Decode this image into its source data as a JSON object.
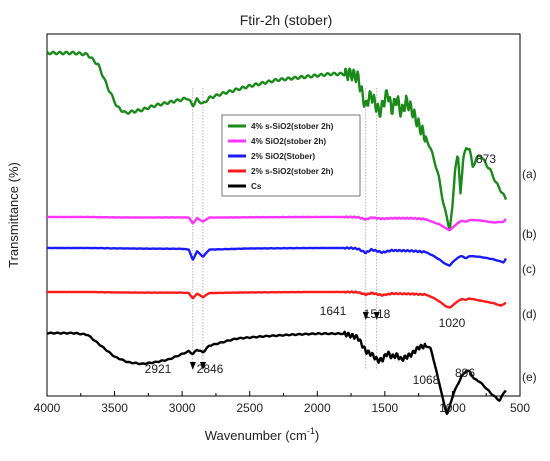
{
  "chart_data": {
    "type": "line",
    "title": "Ftir-2h (stober)",
    "xlabel": "Wavenumber (cm",
    "xlabel_sup": "-1",
    "xlabel_close": ")",
    "ylabel": "Transmittance (%)",
    "x_range": [
      4000,
      500
    ],
    "x_reversed": true,
    "x_ticks": [
      4000,
      3500,
      3000,
      2500,
      2000,
      1500,
      1000,
      500
    ],
    "y_ticks_labeled": false,
    "grid": false,
    "legend_placement": "inside-center",
    "legend": [
      {
        "name": "4% s-SiO2(stober 2h)",
        "color": "#1a8a1a"
      },
      {
        "name": "4% SiO2(stober 2h)",
        "color": "#ff33ff"
      },
      {
        "name": "2% SiO2(Stober)",
        "color": "#1a1aff"
      },
      {
        "name": "2% s-SiO2(stober 2h)",
        "color": "#ff1a1a"
      },
      {
        "name": "Cs",
        "color": "#000000"
      }
    ],
    "series": [
      {
        "id": "a",
        "label": "(a)",
        "color": "#1a8a1a",
        "points": [
          [
            4000,
            0.98
          ],
          [
            3800,
            0.98
          ],
          [
            3700,
            0.97
          ],
          [
            3620,
            0.9
          ],
          [
            3550,
            0.75
          ],
          [
            3480,
            0.62
          ],
          [
            3420,
            0.58
          ],
          [
            3300,
            0.6
          ],
          [
            3200,
            0.63
          ],
          [
            3100,
            0.65
          ],
          [
            3000,
            0.67
          ],
          [
            2960,
            0.68
          ],
          [
            2921,
            0.63
          ],
          [
            2890,
            0.67
          ],
          [
            2846,
            0.64
          ],
          [
            2800,
            0.68
          ],
          [
            2700,
            0.71
          ],
          [
            2500,
            0.76
          ],
          [
            2300,
            0.8
          ],
          [
            2100,
            0.82
          ],
          [
            1900,
            0.84
          ],
          [
            1750,
            0.84
          ],
          [
            1700,
            0.82
          ],
          [
            1660,
            0.68
          ],
          [
            1641,
            0.62
          ],
          [
            1620,
            0.68
          ],
          [
            1600,
            0.7
          ],
          [
            1560,
            0.62
          ],
          [
            1540,
            0.58
          ],
          [
            1518,
            0.63
          ],
          [
            1480,
            0.72
          ],
          [
            1450,
            0.6
          ],
          [
            1410,
            0.68
          ],
          [
            1380,
            0.58
          ],
          [
            1340,
            0.66
          ],
          [
            1300,
            0.6
          ],
          [
            1250,
            0.5
          ],
          [
            1200,
            0.42
          ],
          [
            1160,
            0.34
          ],
          [
            1130,
            0.25
          ],
          [
            1100,
            0.15
          ],
          [
            1068,
            -0.02
          ],
          [
            1040,
            -0.12
          ],
          [
            1020,
            -0.2
          ],
          [
            1000,
            -0.05
          ],
          [
            980,
            0.22
          ],
          [
            960,
            0.3
          ],
          [
            940,
            0.05
          ],
          [
            920,
            0.28
          ],
          [
            896,
            0.35
          ],
          [
            873,
            0.34
          ],
          [
            850,
            0.22
          ],
          [
            820,
            0.28
          ],
          [
            790,
            0.3
          ],
          [
            760,
            0.25
          ],
          [
            720,
            0.2
          ],
          [
            680,
            0.12
          ],
          [
            640,
            0.06
          ],
          [
            600,
            0.0
          ]
        ]
      },
      {
        "id": "b",
        "label": "(b)",
        "color": "#ff33ff",
        "points": [
          [
            4000,
            1
          ],
          [
            3700,
            1
          ],
          [
            3500,
            0.97
          ],
          [
            3300,
            0.96
          ],
          [
            3000,
            0.97
          ],
          [
            2950,
            0.95
          ],
          [
            2921,
            0.45
          ],
          [
            2890,
            0.9
          ],
          [
            2846,
            0.62
          ],
          [
            2800,
            0.95
          ],
          [
            2500,
            0.98
          ],
          [
            2000,
            1
          ],
          [
            1750,
            1
          ],
          [
            1700,
            0.98
          ],
          [
            1641,
            0.8
          ],
          [
            1600,
            0.95
          ],
          [
            1518,
            0.85
          ],
          [
            1450,
            0.9
          ],
          [
            1300,
            0.9
          ],
          [
            1200,
            0.82
          ],
          [
            1150,
            0.6
          ],
          [
            1100,
            0.4
          ],
          [
            1068,
            0.2
          ],
          [
            1040,
            0.0
          ],
          [
            1020,
            -0.1
          ],
          [
            1000,
            0.1
          ],
          [
            960,
            0.5
          ],
          [
            930,
            0.7
          ],
          [
            900,
            0.6
          ],
          [
            873,
            0.75
          ],
          [
            800,
            0.72
          ],
          [
            700,
            0.55
          ],
          [
            620,
            0.6
          ],
          [
            600,
            0.9
          ]
        ]
      },
      {
        "id": "c",
        "label": "(c)",
        "color": "#1a1aff",
        "points": [
          [
            4000,
            1
          ],
          [
            3700,
            1
          ],
          [
            3500,
            0.98
          ],
          [
            3300,
            0.96
          ],
          [
            3000,
            0.95
          ],
          [
            2950,
            0.9
          ],
          [
            2921,
            0.25
          ],
          [
            2890,
            0.8
          ],
          [
            2846,
            0.45
          ],
          [
            2800,
            0.9
          ],
          [
            2500,
            0.97
          ],
          [
            2000,
            1
          ],
          [
            1750,
            1
          ],
          [
            1700,
            0.95
          ],
          [
            1641,
            0.7
          ],
          [
            1600,
            0.9
          ],
          [
            1518,
            0.72
          ],
          [
            1450,
            0.85
          ],
          [
            1300,
            0.82
          ],
          [
            1200,
            0.75
          ],
          [
            1150,
            0.55
          ],
          [
            1100,
            0.3
          ],
          [
            1068,
            0.1
          ],
          [
            1040,
            -0.05
          ],
          [
            1020,
            -0.1
          ],
          [
            1000,
            0.1
          ],
          [
            960,
            0.4
          ],
          [
            930,
            0.5
          ],
          [
            900,
            0.35
          ],
          [
            873,
            0.5
          ],
          [
            800,
            0.45
          ],
          [
            700,
            0.3
          ],
          [
            620,
            0.1
          ],
          [
            600,
            0.4
          ]
        ]
      },
      {
        "id": "d",
        "label": "(d)",
        "color": "#ff1a1a",
        "points": [
          [
            4000,
            1
          ],
          [
            3700,
            1
          ],
          [
            3500,
            0.97
          ],
          [
            3300,
            0.95
          ],
          [
            3000,
            0.95
          ],
          [
            2950,
            0.92
          ],
          [
            2921,
            0.5
          ],
          [
            2890,
            0.88
          ],
          [
            2846,
            0.6
          ],
          [
            2800,
            0.92
          ],
          [
            2500,
            0.97
          ],
          [
            2000,
            1
          ],
          [
            1750,
            1
          ],
          [
            1700,
            0.98
          ],
          [
            1641,
            0.8
          ],
          [
            1600,
            0.92
          ],
          [
            1518,
            0.75
          ],
          [
            1450,
            0.88
          ],
          [
            1300,
            0.85
          ],
          [
            1200,
            0.8
          ],
          [
            1150,
            0.6
          ],
          [
            1100,
            0.3
          ],
          [
            1068,
            0.05
          ],
          [
            1040,
            -0.15
          ],
          [
            1020,
            -0.2
          ],
          [
            1000,
            -0.05
          ],
          [
            960,
            0.3
          ],
          [
            930,
            0.45
          ],
          [
            900,
            0.4
          ],
          [
            873,
            0.5
          ],
          [
            800,
            0.35
          ],
          [
            700,
            0.15
          ],
          [
            640,
            -0.05
          ],
          [
            600,
            0.2
          ]
        ]
      },
      {
        "id": "e",
        "label": "(e)",
        "color": "#000000",
        "points": [
          [
            4000,
            0.98
          ],
          [
            3800,
            0.98
          ],
          [
            3700,
            0.95
          ],
          [
            3600,
            0.75
          ],
          [
            3500,
            0.55
          ],
          [
            3400,
            0.45
          ],
          [
            3300,
            0.42
          ],
          [
            3200,
            0.45
          ],
          [
            3100,
            0.5
          ],
          [
            3000,
            0.6
          ],
          [
            2950,
            0.65
          ],
          [
            2921,
            0.6
          ],
          [
            2890,
            0.68
          ],
          [
            2846,
            0.63
          ],
          [
            2800,
            0.75
          ],
          [
            2600,
            0.88
          ],
          [
            2400,
            0.92
          ],
          [
            2200,
            0.95
          ],
          [
            2000,
            0.97
          ],
          [
            1800,
            0.97
          ],
          [
            1700,
            0.9
          ],
          [
            1641,
            0.65
          ],
          [
            1600,
            0.6
          ],
          [
            1550,
            0.48
          ],
          [
            1518,
            0.5
          ],
          [
            1480,
            0.62
          ],
          [
            1450,
            0.55
          ],
          [
            1410,
            0.58
          ],
          [
            1380,
            0.5
          ],
          [
            1340,
            0.55
          ],
          [
            1300,
            0.6
          ],
          [
            1250,
            0.72
          ],
          [
            1200,
            0.75
          ],
          [
            1160,
            0.7
          ],
          [
            1130,
            0.4
          ],
          [
            1100,
            0.1
          ],
          [
            1068,
            -0.25
          ],
          [
            1040,
            -0.5
          ],
          [
            1020,
            -0.35
          ],
          [
            990,
            -0.1
          ],
          [
            960,
            0.05
          ],
          [
            930,
            0.2
          ],
          [
            896,
            0.3
          ],
          [
            873,
            0.28
          ],
          [
            840,
            0.15
          ],
          [
            800,
            0.1
          ],
          [
            760,
            0.0
          ],
          [
            700,
            -0.15
          ],
          [
            650,
            -0.25
          ],
          [
            620,
            -0.1
          ],
          [
            600,
            -0.05
          ]
        ]
      }
    ],
    "annotations": [
      {
        "text": "873",
        "series": "a",
        "x": 873
      },
      {
        "text": "1641",
        "series": "d",
        "x": 1641,
        "arrow_x": 1641
      },
      {
        "text": "1518",
        "series": "d",
        "x": 1518,
        "arrow_x": 1560
      },
      {
        "text": "1020",
        "series": "d",
        "x": 1020
      },
      {
        "text": "2921",
        "series": "e",
        "x": 2921,
        "arrow_x": 2921
      },
      {
        "text": "2846",
        "series": "e",
        "x": 2846,
        "arrow_x": 2846
      },
      {
        "text": "1068",
        "series": "e",
        "x": 1068
      },
      {
        "text": "896",
        "series": "e",
        "x": 896
      }
    ],
    "vertical_guides": [
      2921,
      2846,
      1641,
      1560
    ]
  }
}
